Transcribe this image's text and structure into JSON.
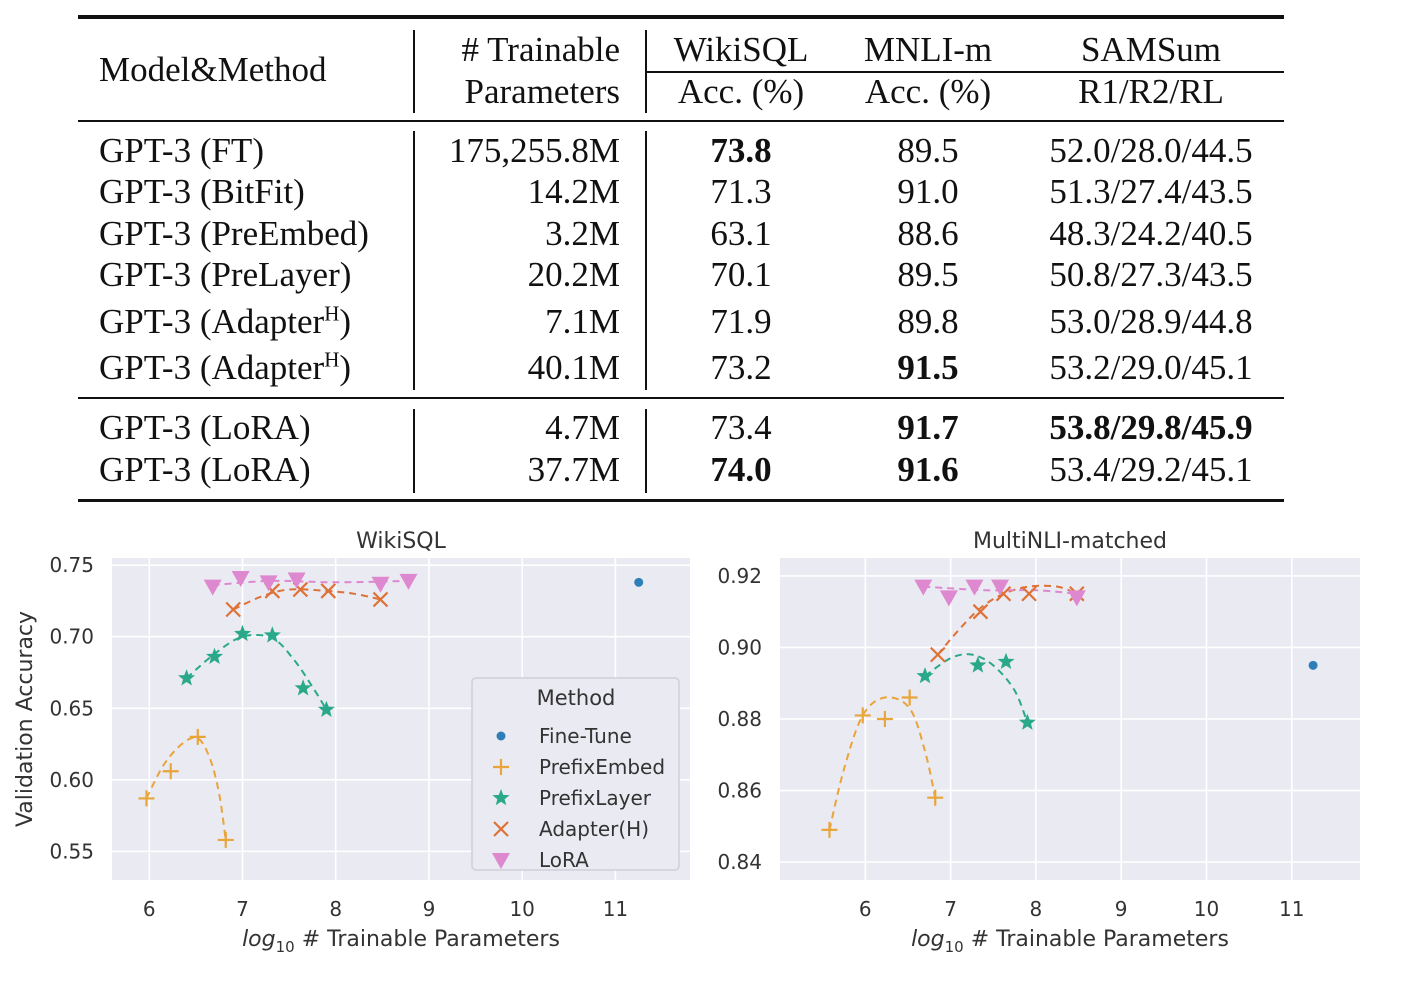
{
  "table": {
    "headers": {
      "model": "Model&Method",
      "params_line1": "# Trainable",
      "params_line2": "Parameters",
      "wikisql": "WikiSQL",
      "wikisql_metric": "Acc. (%)",
      "mnli": "MNLI-m",
      "mnli_metric": "Acc. (%)",
      "samsum": "SAMSum",
      "samsum_metric": "R1/R2/RL"
    },
    "rows": [
      {
        "model": "GPT-3 (FT)",
        "sup": "",
        "params": "175,255.8M",
        "wikisql": "73.8",
        "mnli": "89.5",
        "samsum": "52.0/28.0/44.5",
        "bold": {
          "wikisql": true,
          "mnli": false,
          "samsum": false
        }
      },
      {
        "model": "GPT-3 (BitFit)",
        "sup": "",
        "params": "14.2M",
        "wikisql": "71.3",
        "mnli": "91.0",
        "samsum": "51.3/27.4/43.5",
        "bold": {
          "wikisql": false,
          "mnli": false,
          "samsum": false
        }
      },
      {
        "model": "GPT-3 (PreEmbed)",
        "sup": "",
        "params": "3.2M",
        "wikisql": "63.1",
        "mnli": "88.6",
        "samsum": "48.3/24.2/40.5",
        "bold": {
          "wikisql": false,
          "mnli": false,
          "samsum": false
        }
      },
      {
        "model": "GPT-3 (PreLayer)",
        "sup": "",
        "params": "20.2M",
        "wikisql": "70.1",
        "mnli": "89.5",
        "samsum": "50.8/27.3/43.5",
        "bold": {
          "wikisql": false,
          "mnli": false,
          "samsum": false
        }
      },
      {
        "model": "GPT-3 (Adapter",
        "sup": "H",
        "params": "7.1M",
        "wikisql": "71.9",
        "mnli": "89.8",
        "samsum": "53.0/28.9/44.8",
        "bold": {
          "wikisql": false,
          "mnli": false,
          "samsum": false
        }
      },
      {
        "model": "GPT-3 (Adapter",
        "sup": "H",
        "params": "40.1M",
        "wikisql": "73.2",
        "mnli": "91.5",
        "samsum": "53.2/29.0/45.1",
        "bold": {
          "wikisql": false,
          "mnli": true,
          "samsum": false
        }
      },
      {
        "model": "GPT-3 (LoRA)",
        "sup": "",
        "params": "4.7M",
        "wikisql": "73.4",
        "mnli": "91.7",
        "samsum": "53.8/29.8/45.9",
        "bold": {
          "wikisql": false,
          "mnli": true,
          "samsum": true
        }
      },
      {
        "model": "GPT-3 (LoRA)",
        "sup": "",
        "params": "37.7M",
        "wikisql": "74.0",
        "mnli": "91.6",
        "samsum": "53.4/29.2/45.1",
        "bold": {
          "wikisql": true,
          "mnli": true,
          "samsum": false
        }
      }
    ]
  },
  "legend": {
    "title": "Method",
    "entries": [
      {
        "name": "Fine-Tune",
        "marker": "circle",
        "color": "#2e7fb8"
      },
      {
        "name": "PrefixEmbed",
        "marker": "plus",
        "color": "#e9a43a"
      },
      {
        "name": "PrefixLayer",
        "marker": "star",
        "color": "#2aa98a"
      },
      {
        "name": "Adapter(H)",
        "marker": "x",
        "color": "#de7136"
      },
      {
        "name": "LoRA",
        "marker": "triangle-down",
        "color": "#dd88cf"
      }
    ]
  },
  "chart_data": [
    {
      "type": "scatter",
      "title": "WikiSQL",
      "xlabel": "log10 # Trainable Parameters",
      "ylabel": "Validation Accuracy",
      "xlim": [
        5.6,
        11.8
      ],
      "ylim": [
        0.53,
        0.755
      ],
      "xticks": [
        6,
        7,
        8,
        9,
        10,
        11
      ],
      "yticks": [
        0.55,
        0.6,
        0.65,
        0.7,
        0.75
      ],
      "ytick_labels": [
        "0.55",
        "0.60",
        "0.65",
        "0.70",
        "0.75"
      ],
      "grid": true,
      "legend": "center-right",
      "series": [
        {
          "name": "Fine-Tune",
          "points": [
            [
              11.25,
              0.738
            ]
          ]
        },
        {
          "name": "PrefixEmbed",
          "points": [
            [
              5.97,
              0.587
            ],
            [
              6.23,
              0.606
            ],
            [
              6.52,
              0.63
            ],
            [
              6.82,
              0.558
            ]
          ],
          "curve": [
            [
              5.97,
              0.587
            ],
            [
              6.15,
              0.61
            ],
            [
              6.35,
              0.625
            ],
            [
              6.52,
              0.629
            ],
            [
              6.65,
              0.615
            ],
            [
              6.75,
              0.59
            ],
            [
              6.82,
              0.558
            ]
          ]
        },
        {
          "name": "PrefixLayer",
          "points": [
            [
              6.4,
              0.671
            ],
            [
              6.7,
              0.686
            ],
            [
              7.0,
              0.702
            ],
            [
              7.32,
              0.701
            ],
            [
              7.65,
              0.664
            ],
            [
              7.9,
              0.649
            ]
          ],
          "curve": [
            [
              6.4,
              0.671
            ],
            [
              6.7,
              0.688
            ],
            [
              7.0,
              0.7
            ],
            [
              7.32,
              0.699
            ],
            [
              7.55,
              0.684
            ],
            [
              7.75,
              0.665
            ],
            [
              7.9,
              0.649
            ]
          ]
        },
        {
          "name": "Adapter(H)",
          "points": [
            [
              6.9,
              0.719
            ],
            [
              7.32,
              0.732
            ],
            [
              7.62,
              0.733
            ],
            [
              7.92,
              0.732
            ],
            [
              8.48,
              0.726
            ]
          ],
          "curve": [
            [
              6.9,
              0.719
            ],
            [
              7.2,
              0.728
            ],
            [
              7.5,
              0.733
            ],
            [
              7.9,
              0.732
            ],
            [
              8.2,
              0.73
            ],
            [
              8.48,
              0.726
            ]
          ]
        },
        {
          "name": "LoRA",
          "points": [
            [
              6.68,
              0.735
            ],
            [
              6.98,
              0.741
            ],
            [
              7.28,
              0.738
            ],
            [
              7.58,
              0.74
            ],
            [
              8.48,
              0.737
            ],
            [
              8.78,
              0.739
            ]
          ],
          "curve": [
            [
              6.68,
              0.736
            ],
            [
              7.3,
              0.739
            ],
            [
              8.0,
              0.738
            ],
            [
              8.78,
              0.739
            ]
          ]
        }
      ]
    },
    {
      "type": "scatter",
      "title": "MultiNLI-matched",
      "xlabel": "log10 # Trainable Parameters",
      "ylabel": "",
      "xlim": [
        5.0,
        11.8
      ],
      "ylim": [
        0.835,
        0.925
      ],
      "xticks": [
        6,
        7,
        8,
        9,
        10,
        11
      ],
      "yticks": [
        0.84,
        0.86,
        0.88,
        0.9,
        0.92
      ],
      "ytick_labels": [
        "0.84",
        "0.86",
        "0.88",
        "0.90",
        "0.92"
      ],
      "grid": true,
      "legend": "none",
      "series": [
        {
          "name": "Fine-Tune",
          "points": [
            [
              11.25,
              0.895
            ]
          ]
        },
        {
          "name": "PrefixEmbed",
          "points": [
            [
              5.58,
              0.849
            ],
            [
              5.97,
              0.881
            ],
            [
              6.23,
              0.88
            ],
            [
              6.52,
              0.886
            ],
            [
              6.82,
              0.858
            ]
          ],
          "curve": [
            [
              5.58,
              0.849
            ],
            [
              5.75,
              0.866
            ],
            [
              5.97,
              0.881
            ],
            [
              6.23,
              0.886
            ],
            [
              6.52,
              0.883
            ],
            [
              6.7,
              0.871
            ],
            [
              6.82,
              0.858
            ]
          ]
        },
        {
          "name": "PrefixLayer",
          "points": [
            [
              6.7,
              0.892
            ],
            [
              7.32,
              0.895
            ],
            [
              7.65,
              0.896
            ],
            [
              7.9,
              0.879
            ]
          ],
          "curve": [
            [
              6.7,
              0.892
            ],
            [
              7.0,
              0.897
            ],
            [
              7.25,
              0.898
            ],
            [
              7.5,
              0.895
            ],
            [
              7.75,
              0.888
            ],
            [
              7.9,
              0.879
            ]
          ]
        },
        {
          "name": "Adapter(H)",
          "points": [
            [
              6.85,
              0.898
            ],
            [
              7.35,
              0.91
            ],
            [
              7.62,
              0.915
            ],
            [
              7.92,
              0.915
            ],
            [
              8.48,
              0.915
            ]
          ],
          "curve": [
            [
              6.85,
              0.898
            ],
            [
              7.1,
              0.905
            ],
            [
              7.35,
              0.911
            ],
            [
              7.62,
              0.915
            ],
            [
              7.92,
              0.917
            ],
            [
              8.25,
              0.917
            ],
            [
              8.48,
              0.915
            ]
          ]
        },
        {
          "name": "LoRA",
          "points": [
            [
              6.68,
              0.917
            ],
            [
              6.98,
              0.914
            ],
            [
              7.28,
              0.917
            ],
            [
              7.58,
              0.917
            ],
            [
              8.48,
              0.914
            ]
          ],
          "curve": [
            [
              6.68,
              0.917
            ],
            [
              7.4,
              0.916
            ],
            [
              8.0,
              0.916
            ],
            [
              8.48,
              0.915
            ]
          ]
        }
      ]
    }
  ]
}
